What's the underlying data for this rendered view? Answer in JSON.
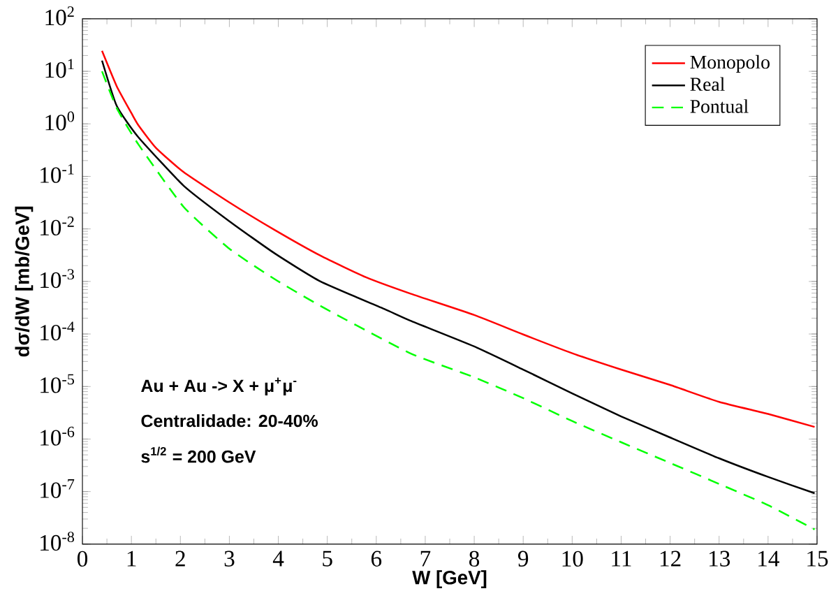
{
  "chart_data": {
    "type": "line",
    "xlabel": "W [GeV]",
    "ylabel": "dσ/dW [mb/GeV]",
    "log": "y",
    "legend": "top right",
    "marker": "none",
    "xlim": [
      0,
      15
    ],
    "ylim": [
      1e-08,
      100
    ],
    "xticks": [
      0,
      1,
      2,
      3,
      4,
      5,
      6,
      7,
      8,
      9,
      10,
      11,
      12,
      13,
      14,
      15
    ],
    "yticks": [
      {
        "value": 1e-08,
        "label": "10$^{-8}$"
      },
      {
        "value": 1e-07,
        "label": "10$^{-7}$"
      },
      {
        "value": 1e-06,
        "label": "10$^{-6}$"
      },
      {
        "value": 1e-05,
        "label": "10$^{-5}$"
      },
      {
        "value": 0.0001,
        "label": "10$^{-4}$"
      },
      {
        "value": 0.001,
        "label": "10$^{-3}$"
      },
      {
        "value": 0.01,
        "label": "10$^{-2}$"
      },
      {
        "value": 0.1,
        "label": "10$^{-1}$"
      },
      {
        "value": 1,
        "label": "10$^{0}$"
      },
      {
        "value": 10,
        "label": "10$^{1}$"
      },
      {
        "value": 100,
        "label": "10$^{2}$"
      }
    ],
    "series": [
      {
        "name": "Monopolo",
        "color": "#ff0000",
        "line_style": "solid",
        "x": [
          0.4,
          0.7,
          1.0,
          1.14,
          1.5,
          2.07,
          3.0,
          3.93,
          4.86,
          5.79,
          6.71,
          8,
          9,
          10,
          11,
          12,
          13,
          14,
          14.95
        ],
        "values": [
          24.5,
          5.2,
          1.6,
          0.95,
          0.35,
          0.12,
          0.032,
          0.0095,
          0.0031,
          0.0012,
          0.00058,
          0.00023,
          9.8e-05,
          4.3e-05,
          2.1e-05,
          1.07e-05,
          5.1e-06,
          3e-06,
          1.7e-06
        ]
      },
      {
        "name": "Real",
        "color": "#000000",
        "line_style": "solid",
        "x": [
          0.4,
          0.7,
          1.14,
          2.07,
          3.0,
          3.93,
          4.86,
          6.16,
          6.69,
          8,
          9,
          10,
          11,
          12,
          13,
          14,
          14.95
        ],
        "values": [
          16,
          2.2,
          0.56,
          0.066,
          0.014,
          0.0034,
          0.001,
          0.0003,
          0.00018,
          5.8e-05,
          2.1e-05,
          7.4e-06,
          2.7e-06,
          1.07e-06,
          4.3e-07,
          1.9e-07,
          9.3e-08
        ]
      },
      {
        "name": "Pontual",
        "color": "#00ff00",
        "line_style": "dashed",
        "x": [
          0.4,
          0.7,
          1.14,
          2.07,
          3.0,
          3.93,
          4.97,
          6.69,
          8,
          9,
          10,
          11,
          12,
          13,
          14,
          14.95
        ],
        "values": [
          10,
          2.0,
          0.41,
          0.026,
          0.0042,
          0.0011,
          0.0003,
          4.3e-05,
          1.5e-05,
          6e-06,
          2.2e-06,
          8.7e-07,
          3.5e-07,
          1.4e-07,
          5.5e-08,
          1.9e-08
        ]
      }
    ],
    "annotations": [
      "Au + Au  ->  X + μ$^{+}$μ$^{-}$",
      "Centralidade: 20-40%",
      "s$^{1/2}$ = 200 GeV"
    ]
  }
}
